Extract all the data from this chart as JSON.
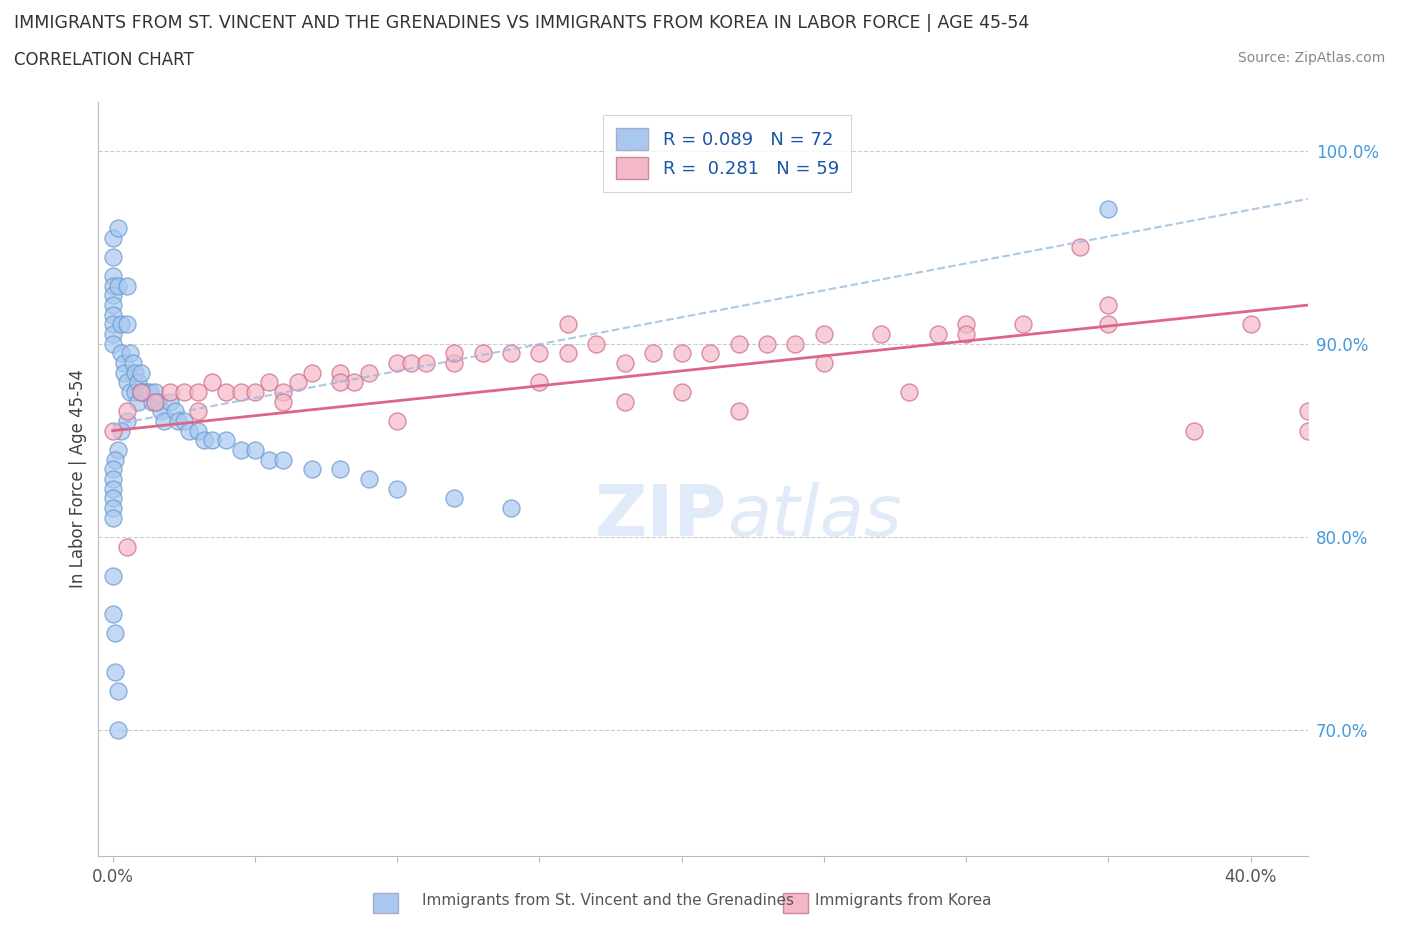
{
  "title_line1": "IMMIGRANTS FROM ST. VINCENT AND THE GRENADINES VS IMMIGRANTS FROM KOREA IN LABOR FORCE | AGE 45-54",
  "title_line2": "CORRELATION CHART",
  "source": "Source: ZipAtlas.com",
  "ylabel": "In Labor Force | Age 45-54",
  "blue_color": "#a8c8f0",
  "blue_edge": "#6699cc",
  "pink_color": "#f5b8c8",
  "pink_edge": "#cc6688",
  "blue_trend_color": "#99bbdd",
  "pink_trend_color": "#dd6688",
  "right_tick_color": "#4499dd",
  "watermark_color": "#ccddf5",
  "bottom_label1": "Immigrants from St. Vincent and the Grenadines",
  "bottom_label2": "Immigrants from Korea",
  "xlim": [
    -0.005,
    0.42
  ],
  "ylim": [
    0.635,
    1.025
  ],
  "x_ticks": [
    0.0,
    0.05,
    0.1,
    0.15,
    0.2,
    0.25,
    0.3,
    0.35,
    0.4
  ],
  "y_ticks_right": [
    0.7,
    0.8,
    0.9,
    1.0
  ],
  "blue_x": [
    0.0,
    0.0,
    0.0,
    0.0,
    0.0,
    0.0,
    0.0,
    0.0,
    0.0,
    0.0,
    0.002,
    0.002,
    0.003,
    0.003,
    0.004,
    0.004,
    0.005,
    0.005,
    0.005,
    0.006,
    0.006,
    0.007,
    0.008,
    0.008,
    0.009,
    0.009,
    0.01,
    0.01,
    0.011,
    0.012,
    0.013,
    0.014,
    0.015,
    0.016,
    0.017,
    0.018,
    0.02,
    0.022,
    0.023,
    0.025,
    0.027,
    0.03,
    0.032,
    0.035,
    0.04,
    0.045,
    0.05,
    0.055,
    0.06,
    0.07,
    0.08,
    0.09,
    0.1,
    0.12,
    0.14,
    0.005,
    0.003,
    0.002,
    0.001,
    0.0,
    0.0,
    0.0,
    0.0,
    0.0,
    0.0,
    0.0,
    0.0,
    0.001,
    0.001,
    0.002,
    0.002,
    0.35
  ],
  "blue_y": [
    0.955,
    0.945,
    0.935,
    0.93,
    0.925,
    0.92,
    0.915,
    0.91,
    0.905,
    0.9,
    0.96,
    0.93,
    0.91,
    0.895,
    0.89,
    0.885,
    0.93,
    0.91,
    0.88,
    0.895,
    0.875,
    0.89,
    0.885,
    0.875,
    0.88,
    0.87,
    0.885,
    0.875,
    0.875,
    0.875,
    0.875,
    0.87,
    0.875,
    0.87,
    0.865,
    0.86,
    0.87,
    0.865,
    0.86,
    0.86,
    0.855,
    0.855,
    0.85,
    0.85,
    0.85,
    0.845,
    0.845,
    0.84,
    0.84,
    0.835,
    0.835,
    0.83,
    0.825,
    0.82,
    0.815,
    0.86,
    0.855,
    0.845,
    0.84,
    0.835,
    0.83,
    0.825,
    0.82,
    0.815,
    0.81,
    0.78,
    0.76,
    0.75,
    0.73,
    0.72,
    0.7,
    0.97
  ],
  "pink_x": [
    0.0,
    0.005,
    0.01,
    0.015,
    0.02,
    0.025,
    0.03,
    0.035,
    0.04,
    0.045,
    0.05,
    0.055,
    0.06,
    0.065,
    0.07,
    0.08,
    0.085,
    0.09,
    0.1,
    0.105,
    0.11,
    0.12,
    0.13,
    0.14,
    0.15,
    0.16,
    0.17,
    0.18,
    0.19,
    0.2,
    0.21,
    0.22,
    0.23,
    0.24,
    0.25,
    0.27,
    0.29,
    0.3,
    0.32,
    0.35,
    0.38,
    0.4,
    0.03,
    0.06,
    0.1,
    0.15,
    0.2,
    0.25,
    0.3,
    0.35,
    0.12,
    0.18,
    0.22,
    0.08,
    0.16,
    0.28,
    0.34,
    0.42,
    0.005,
    0.55
  ],
  "pink_y": [
    0.855,
    0.865,
    0.875,
    0.87,
    0.875,
    0.875,
    0.875,
    0.88,
    0.875,
    0.875,
    0.875,
    0.88,
    0.875,
    0.88,
    0.885,
    0.885,
    0.88,
    0.885,
    0.89,
    0.89,
    0.89,
    0.89,
    0.895,
    0.895,
    0.895,
    0.895,
    0.9,
    0.89,
    0.895,
    0.895,
    0.895,
    0.9,
    0.9,
    0.9,
    0.905,
    0.905,
    0.905,
    0.91,
    0.91,
    0.91,
    0.855,
    0.91,
    0.865,
    0.87,
    0.86,
    0.88,
    0.875,
    0.89,
    0.905,
    0.92,
    0.895,
    0.87,
    0.865,
    0.88,
    0.91,
    0.875,
    0.95,
    0.855,
    0.795,
    0.865
  ],
  "blue_trend_x0": 0.0,
  "blue_trend_y0": 0.858,
  "blue_trend_x1": 0.42,
  "blue_trend_y1": 0.975,
  "pink_trend_x0": 0.0,
  "pink_trend_y0": 0.855,
  "pink_trend_x1": 0.42,
  "pink_trend_y1": 0.92
}
